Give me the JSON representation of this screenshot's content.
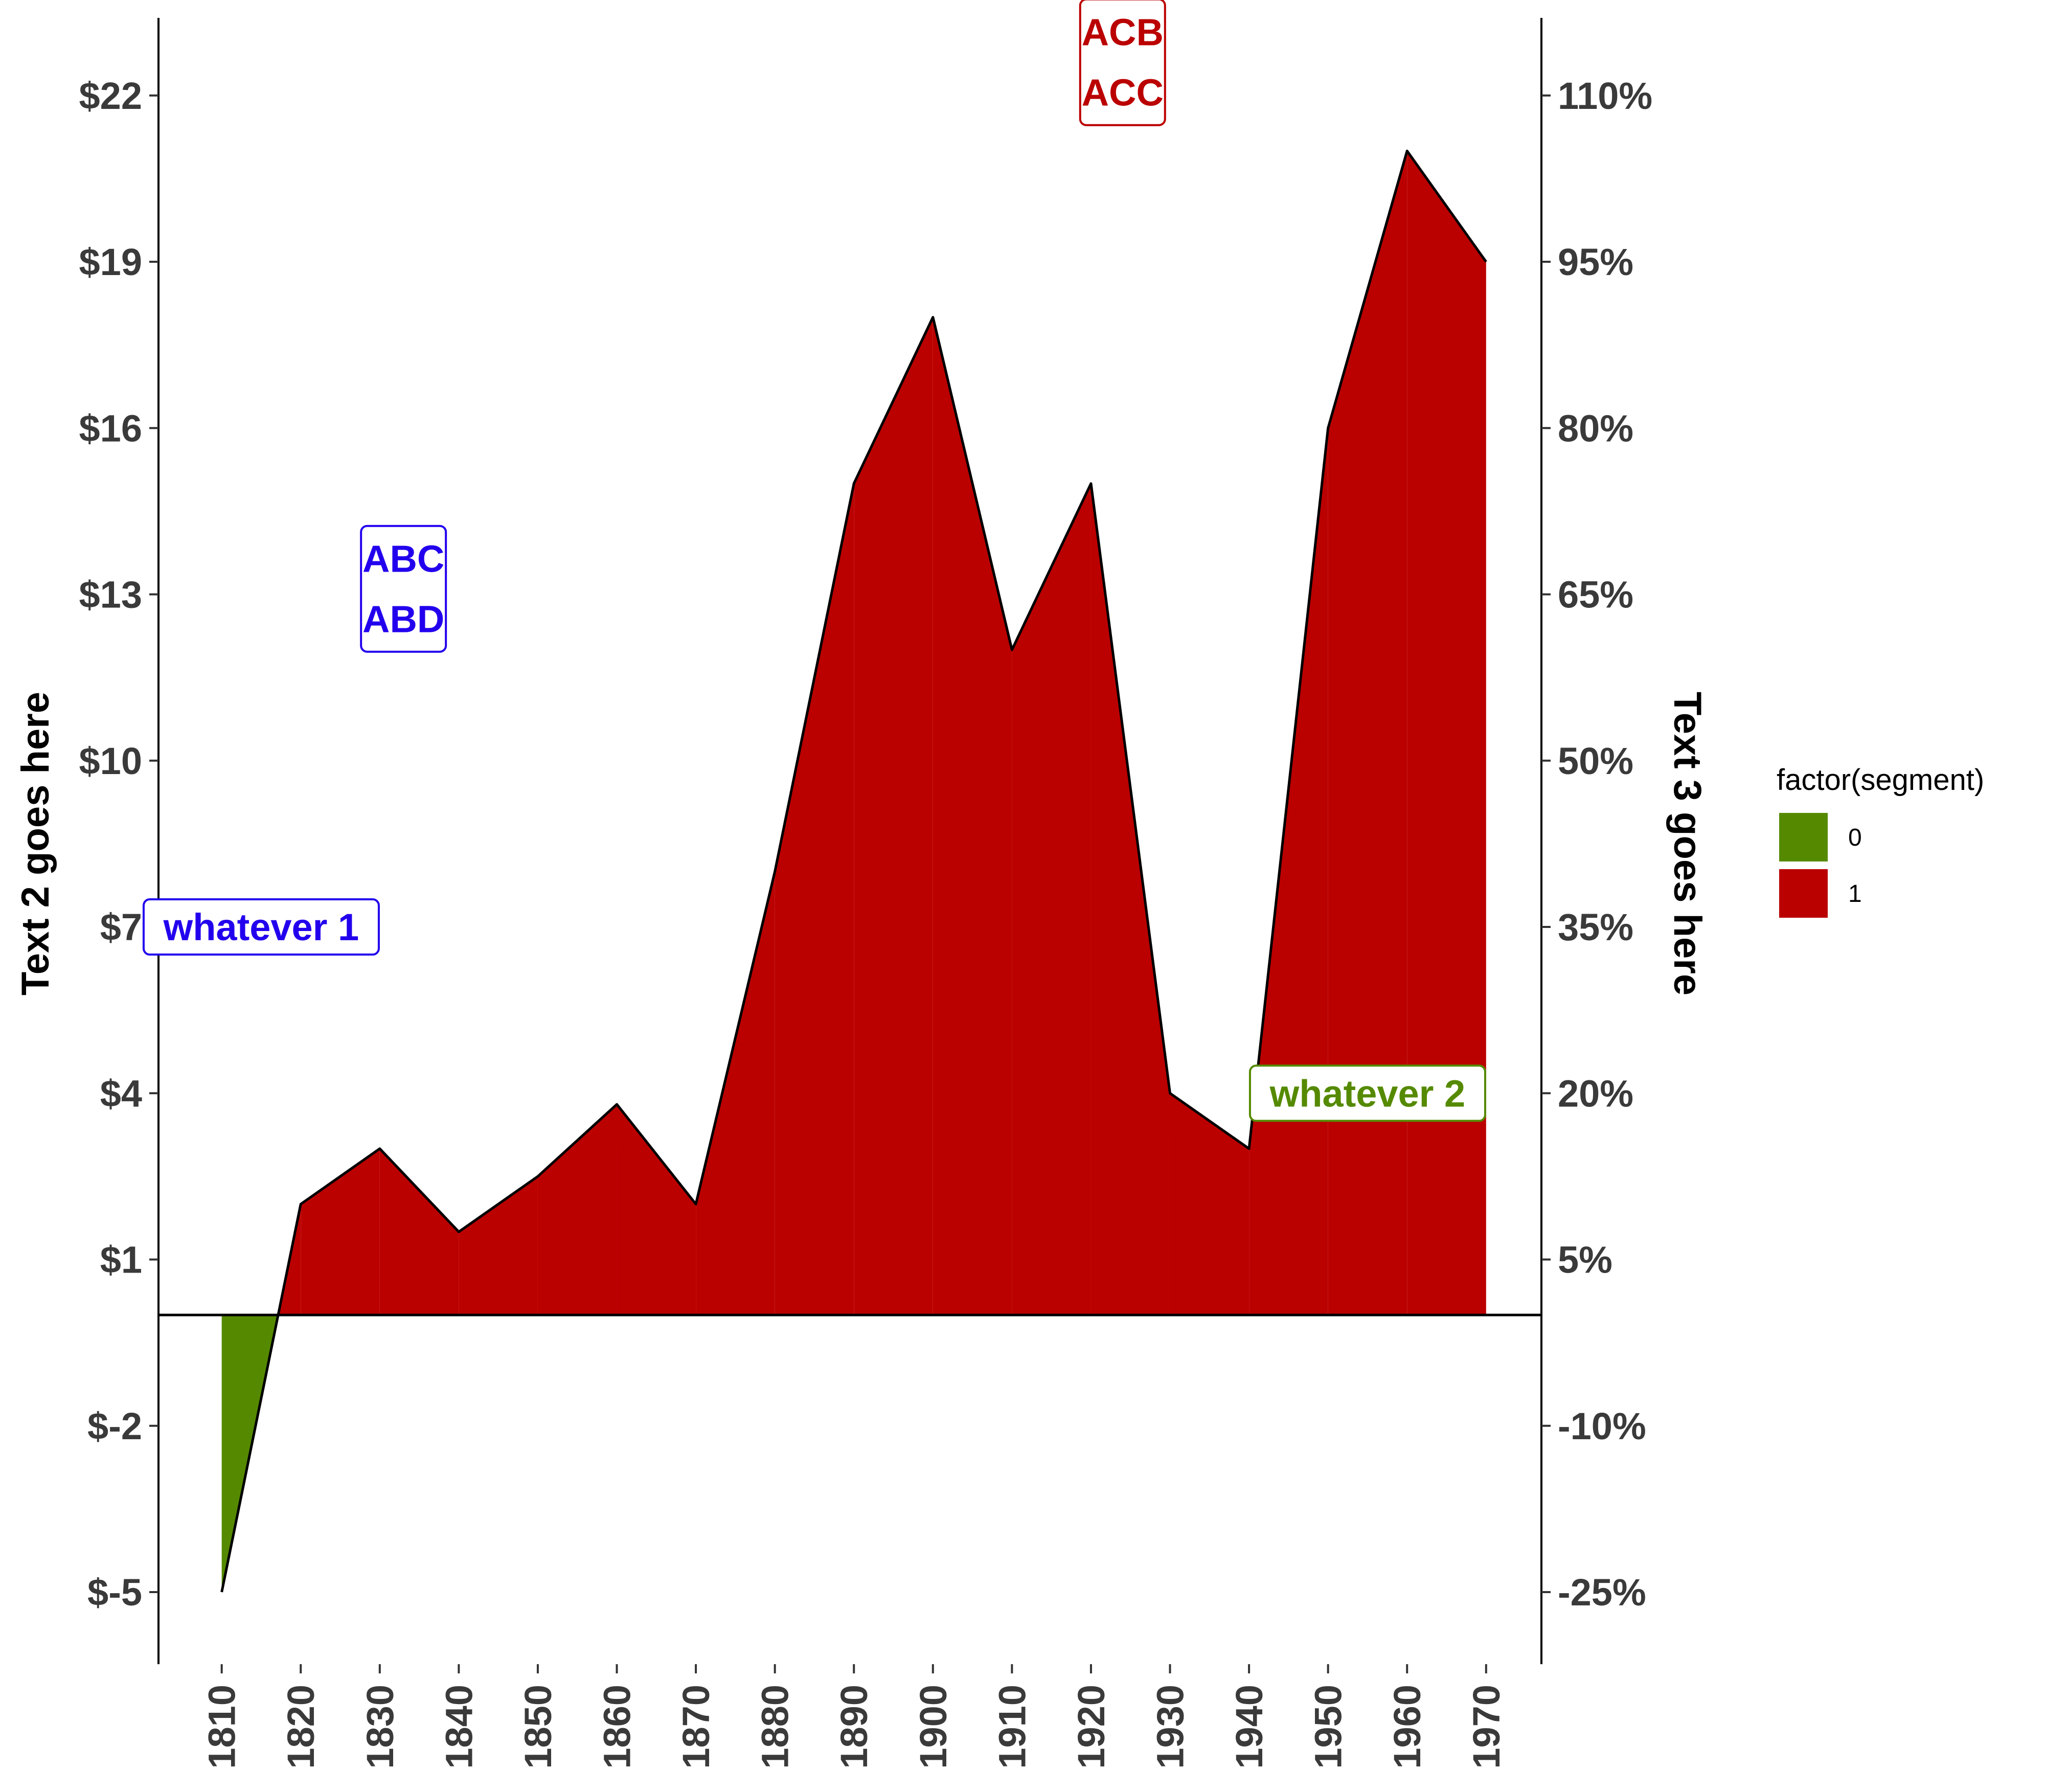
{
  "chart_data": {
    "type": "area",
    "title": "",
    "xlabel": "",
    "ylabel": "Text 2 goes here",
    "y2label": "Text 3 goes here",
    "x": [
      1810,
      1820,
      1830,
      1840,
      1850,
      1860,
      1870,
      1880,
      1890,
      1900,
      1910,
      1920,
      1930,
      1940,
      1950,
      1960,
      1970
    ],
    "values": [
      -5,
      2,
      3,
      1.5,
      2.5,
      3.8,
      2,
      8,
      15,
      18,
      12,
      15,
      4,
      3,
      16,
      21,
      19
    ],
    "xticks": [
      "1810",
      "1820",
      "1830",
      "1840",
      "1850",
      "1860",
      "1870",
      "1880",
      "1890",
      "1900",
      "1910",
      "1920",
      "1930",
      "1940",
      "1950",
      "1960",
      "1970"
    ],
    "yticks": [
      -5,
      -2,
      1,
      4,
      7,
      10,
      13,
      16,
      19,
      22
    ],
    "ytick_labels": [
      "$-5",
      "$-2",
      "$1",
      "$4",
      "$7",
      "$10",
      "$13",
      "$16",
      "$19",
      "$22"
    ],
    "y2tick_labels": [
      "-25%",
      "-10%",
      "5%",
      "20%",
      "35%",
      "50%",
      "65%",
      "80%",
      "95%",
      "110%"
    ],
    "ylim": [
      -6.3,
      23.4
    ],
    "xlim": [
      1802,
      1977
    ],
    "baseline": 0,
    "grid": false,
    "fill_rule": "segment 0 where value < 0, segment 1 where value >= 0",
    "legend": {
      "title": "factor(segment)",
      "position": "right",
      "entries": [
        {
          "label": "0",
          "color": "#558a00"
        },
        {
          "label": "1",
          "color": "#bb0000"
        }
      ]
    },
    "annotations": [
      {
        "lines": [
          "ACB",
          "ACC"
        ],
        "x": 1924,
        "y": 22.6,
        "color": "#bb0000"
      },
      {
        "lines": [
          "ABC",
          "ABD"
        ],
        "x": 1833,
        "y": 13.1,
        "color": "#2200ee"
      },
      {
        "lines": [
          "whatever 1"
        ],
        "x": 1815,
        "y": 7.0,
        "color": "#2200ee"
      },
      {
        "lines": [
          "whatever 2"
        ],
        "x": 1955,
        "y": 4.0,
        "color": "#558a00"
      }
    ]
  }
}
